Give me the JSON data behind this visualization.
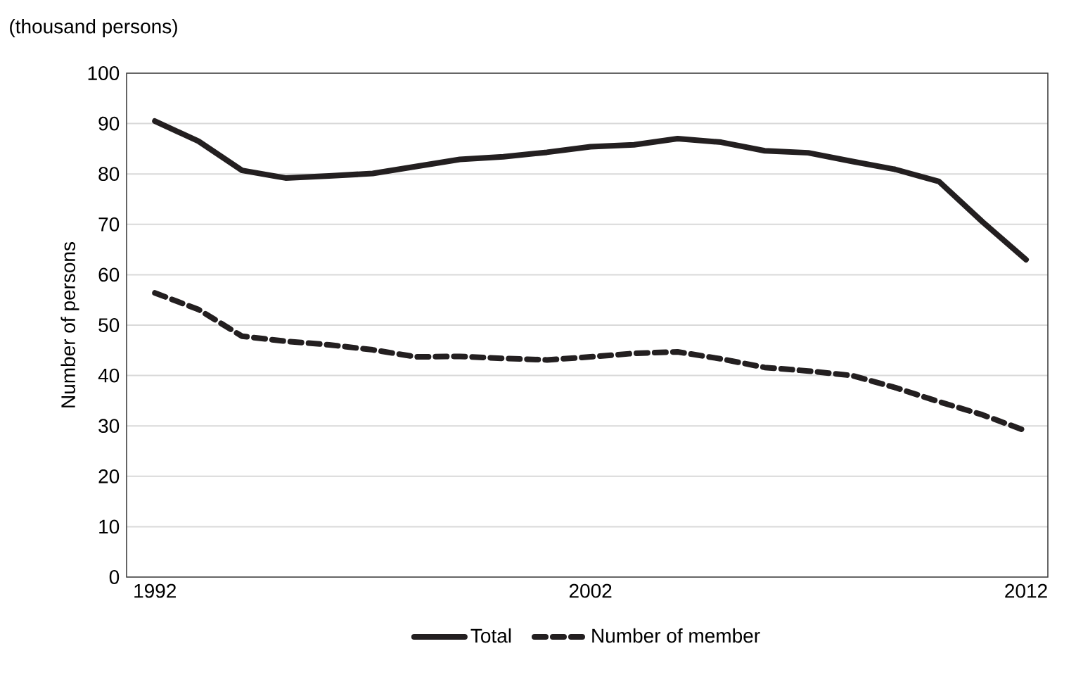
{
  "chart_data": {
    "type": "line",
    "ylabel": "Number of persons",
    "annotations": [
      "(thousand persons)"
    ],
    "x": [
      1992,
      1993,
      1994,
      1995,
      1996,
      1997,
      1998,
      1999,
      2000,
      2001,
      2002,
      2003,
      2004,
      2005,
      2006,
      2007,
      2008,
      2009,
      2010,
      2011,
      2012
    ],
    "series": [
      {
        "name": "Total",
        "color": "#231f20",
        "line_style": "solid",
        "values": [
          90.5,
          86.5,
          80.7,
          79.2,
          79.6,
          80.1,
          81.5,
          82.9,
          83.4,
          84.3,
          85.4,
          85.8,
          87.0,
          86.3,
          84.6,
          84.2,
          82.5,
          80.9,
          78.5,
          70.5,
          63.0
        ]
      },
      {
        "name": "Number of member",
        "color": "#231f20",
        "line_style": "dashed",
        "values": [
          56.4,
          53.1,
          47.8,
          46.8,
          46.1,
          45.1,
          43.7,
          43.8,
          43.4,
          43.1,
          43.7,
          44.4,
          44.7,
          43.3,
          41.6,
          40.9,
          40.0,
          37.6,
          34.8,
          32.2,
          29.0
        ]
      }
    ],
    "xlim": [
      1991.35,
      2012.5
    ],
    "xticks": [
      1992,
      2002,
      2012
    ],
    "ylim": [
      0,
      100
    ],
    "yticks": [
      0,
      10,
      20,
      30,
      40,
      50,
      60,
      70,
      80,
      90,
      100
    ],
    "grid": "y",
    "legend": "bottom",
    "marker": "none"
  }
}
